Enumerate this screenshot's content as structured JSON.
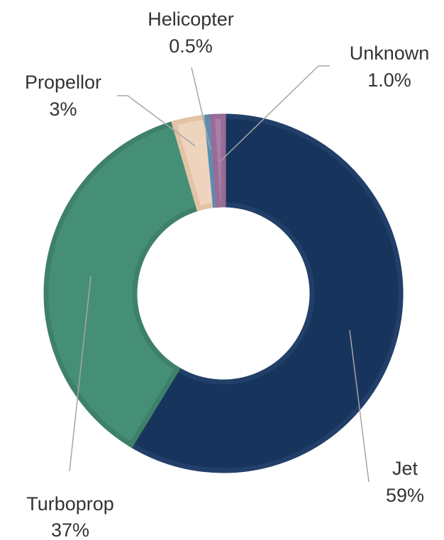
{
  "chart_data": {
    "type": "pie",
    "variant": "donut",
    "title": "",
    "legend": "none",
    "series": [
      {
        "slices": [
          {
            "name": "Jet",
            "value": 59,
            "label": "59%",
            "color": "#17345c",
            "edge": "#213f69"
          },
          {
            "name": "Turboprop",
            "value": 37,
            "label": "37%",
            "color": "#458f77",
            "edge": "#3e8069"
          },
          {
            "name": "Propellor",
            "value": 3,
            "label": "3%",
            "color": "#efd4bd",
            "edge": "#e3c3a6"
          },
          {
            "name": "Helicopter",
            "value": 0.5,
            "label": "0.5%",
            "color": "#6c9fc6",
            "edge": "#5a8db4"
          },
          {
            "name": "Unknown",
            "value": 1.0,
            "label": "1.0%",
            "color": "#a97ea8",
            "edge": "#976c96"
          }
        ]
      }
    ]
  },
  "labels": {
    "jet": {
      "name": "Jet",
      "pct": "59%"
    },
    "turboprop": {
      "name": "Turboprop",
      "pct": "37%"
    },
    "propellor": {
      "name": "Propellor",
      "pct": "3%"
    },
    "helicopter": {
      "name": "Helicopter",
      "pct": "0.5%"
    },
    "unknown": {
      "name": "Unknown",
      "pct": "1.0%"
    }
  }
}
